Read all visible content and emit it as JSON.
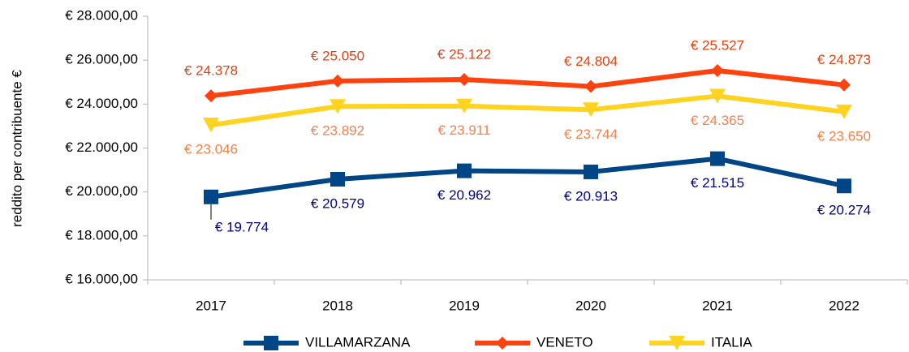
{
  "chart_data": {
    "type": "line",
    "y_label": "reddito per contribuente €",
    "categories": [
      "2017",
      "2018",
      "2019",
      "2020",
      "2021",
      "2022"
    ],
    "series": [
      {
        "name": "VILLAMARZANA",
        "color": "#004586",
        "label_color": "#000080",
        "marker": "square",
        "label_side": "below",
        "values": [
          19774,
          20579,
          20962,
          20913,
          21515,
          20274
        ],
        "value_labels": [
          "€ 19.774",
          "€ 20.579",
          "€ 20.962",
          "€ 20.913",
          "€ 21.515",
          "€ 20.274"
        ]
      },
      {
        "name": "VENETO",
        "color": "#ff420e",
        "label_color": "#e8400e",
        "marker": "diamond",
        "label_side": "above",
        "values": [
          24378,
          25050,
          25122,
          24804,
          25527,
          24873
        ],
        "value_labels": [
          "€ 24.378",
          "€ 25.050",
          "€ 25.122",
          "€ 24.804",
          "€ 25.527",
          "€ 24.873"
        ]
      },
      {
        "name": "ITALIA",
        "color": "#ffd320",
        "label_color": "#f5814b",
        "marker": "triangle-down",
        "label_side": "below",
        "values": [
          23046,
          23892,
          23911,
          23744,
          24365,
          23650
        ],
        "value_labels": [
          "€ 23.046",
          "€ 23.892",
          "€ 23.911",
          "€ 23.744",
          "€ 24.365",
          "€ 23.650"
        ]
      }
    ],
    "ylim": [
      16000,
      28000
    ],
    "yticks": [
      {
        "value": 16000,
        "label": "€ 16.000,00"
      },
      {
        "value": 18000,
        "label": "€ 18.000,00"
      },
      {
        "value": 20000,
        "label": "€ 20.000,00"
      },
      {
        "value": 22000,
        "label": "€ 22.000,00"
      },
      {
        "value": 24000,
        "label": "€ 24.000,00"
      },
      {
        "value": 26000,
        "label": "€ 26.000,00"
      },
      {
        "value": 28000,
        "label": "€ 28.000,00"
      }
    ],
    "grid": false,
    "legend": "bottom"
  }
}
